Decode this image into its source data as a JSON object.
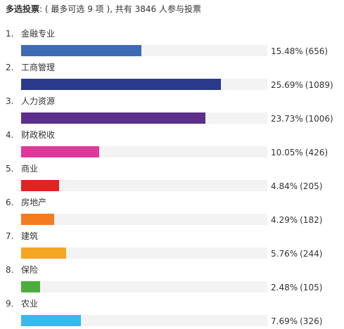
{
  "header": {
    "title": "多选投票",
    "colon": ":",
    "summary": "( 最多可选 9 项 ), 共有 3846 人参与投票"
  },
  "options": [
    {
      "index": "1.",
      "label": "金融专业",
      "percent": "15.48%",
      "count": "(656)",
      "share": 15.48,
      "color": "#3d6cb5"
    },
    {
      "index": "2.",
      "label": "工商管理",
      "percent": "25.69%",
      "count": "(1089)",
      "share": 25.69,
      "color": "#2b3a8c"
    },
    {
      "index": "3.",
      "label": "人力资源",
      "percent": "23.73%",
      "count": "(1006)",
      "share": 23.73,
      "color": "#5b2f8a"
    },
    {
      "index": "4.",
      "label": "财政税收",
      "percent": "10.05%",
      "count": "(426)",
      "share": 10.05,
      "color": "#e0389a"
    },
    {
      "index": "5.",
      "label": "商业",
      "percent": "4.84%",
      "count": "(205)",
      "share": 4.84,
      "color": "#e32222"
    },
    {
      "index": "6.",
      "label": "房地产",
      "percent": "4.29%",
      "count": "(182)",
      "share": 4.29,
      "color": "#f47b20"
    },
    {
      "index": "7.",
      "label": "建筑",
      "percent": "5.76%",
      "count": "(244)",
      "share": 5.76,
      "color": "#f5a623"
    },
    {
      "index": "8.",
      "label": "保险",
      "percent": "2.48%",
      "count": "(105)",
      "share": 2.48,
      "color": "#4cae3c"
    },
    {
      "index": "9.",
      "label": "农业",
      "percent": "7.69%",
      "count": "(326)",
      "share": 7.69,
      "color": "#3bb8ee"
    }
  ]
}
